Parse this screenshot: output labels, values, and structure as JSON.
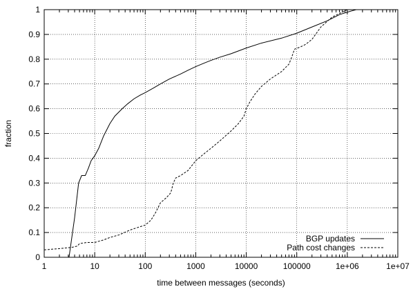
{
  "chart_data": {
    "type": "line",
    "title": "",
    "xlabel": "time between messages (seconds)",
    "ylabel": "fraction",
    "x_scale": "log",
    "xlim": [
      1,
      10000000
    ],
    "ylim": [
      0,
      1
    ],
    "grid": true,
    "legend_position": "bottom-right",
    "x_ticks": [
      1,
      10,
      100,
      1000,
      10000,
      100000,
      1000000,
      10000000
    ],
    "x_tick_labels": [
      "1",
      "10",
      "100",
      "1000",
      "10000",
      "100000",
      "1e+06",
      "1e+07"
    ],
    "y_ticks": [
      0,
      0.1,
      0.2,
      0.3,
      0.4,
      0.5,
      0.6,
      0.7,
      0.8,
      0.9,
      1
    ],
    "y_tick_labels": [
      "0",
      "0.1",
      "0.2",
      "0.3",
      "0.4",
      "0.5",
      "0.6",
      "0.7",
      "0.8",
      "0.9",
      "1"
    ],
    "series": [
      {
        "name": "BGP updates",
        "style": "solid",
        "color": "#000000",
        "points": [
          [
            1,
            0
          ],
          [
            3.1,
            0
          ],
          [
            4.0,
            0.16
          ],
          [
            4.8,
            0.3
          ],
          [
            5.5,
            0.33
          ],
          [
            6.5,
            0.33
          ],
          [
            7.5,
            0.36
          ],
          [
            8.5,
            0.39
          ],
          [
            10,
            0.41
          ],
          [
            12,
            0.44
          ],
          [
            15,
            0.49
          ],
          [
            20,
            0.54
          ],
          [
            25,
            0.57
          ],
          [
            35,
            0.6
          ],
          [
            45,
            0.62
          ],
          [
            60,
            0.64
          ],
          [
            80,
            0.655
          ],
          [
            100,
            0.665
          ],
          [
            150,
            0.685
          ],
          [
            200,
            0.7
          ],
          [
            300,
            0.72
          ],
          [
            500,
            0.74
          ],
          [
            700,
            0.755
          ],
          [
            1000,
            0.77
          ],
          [
            1500,
            0.785
          ],
          [
            2000,
            0.795
          ],
          [
            3000,
            0.808
          ],
          [
            5000,
            0.822
          ],
          [
            10000,
            0.845
          ],
          [
            20000,
            0.865
          ],
          [
            50000,
            0.885
          ],
          [
            100000,
            0.905
          ],
          [
            200000,
            0.93
          ],
          [
            400000,
            0.955
          ],
          [
            700000,
            0.98
          ],
          [
            1000000,
            0.99
          ],
          [
            1500000,
            1.0
          ],
          [
            10000000,
            1.0
          ]
        ]
      },
      {
        "name": "Path cost changes",
        "style": "dashed",
        "color": "#000000",
        "points": [
          [
            1,
            0.03
          ],
          [
            2,
            0.035
          ],
          [
            3.5,
            0.04
          ],
          [
            4.5,
            0.045
          ],
          [
            5,
            0.055
          ],
          [
            7,
            0.06
          ],
          [
            10,
            0.06
          ],
          [
            15,
            0.07
          ],
          [
            20,
            0.08
          ],
          [
            30,
            0.09
          ],
          [
            50,
            0.11
          ],
          [
            70,
            0.12
          ],
          [
            100,
            0.13
          ],
          [
            130,
            0.15
          ],
          [
            160,
            0.18
          ],
          [
            200,
            0.22
          ],
          [
            260,
            0.24
          ],
          [
            320,
            0.26
          ],
          [
            360,
            0.3
          ],
          [
            400,
            0.32
          ],
          [
            500,
            0.33
          ],
          [
            700,
            0.35
          ],
          [
            1000,
            0.39
          ],
          [
            1500,
            0.42
          ],
          [
            2000,
            0.44
          ],
          [
            3000,
            0.47
          ],
          [
            5000,
            0.51
          ],
          [
            7000,
            0.54
          ],
          [
            9000,
            0.57
          ],
          [
            10000,
            0.6
          ],
          [
            12000,
            0.63
          ],
          [
            15000,
            0.66
          ],
          [
            20000,
            0.69
          ],
          [
            30000,
            0.72
          ],
          [
            50000,
            0.75
          ],
          [
            70000,
            0.78
          ],
          [
            80000,
            0.81
          ],
          [
            90000,
            0.84
          ],
          [
            120000,
            0.85
          ],
          [
            150000,
            0.86
          ],
          [
            200000,
            0.88
          ],
          [
            300000,
            0.93
          ],
          [
            500000,
            0.97
          ],
          [
            800000,
            0.99
          ],
          [
            1000000,
            1.0
          ],
          [
            10000000,
            1.0
          ]
        ]
      }
    ]
  }
}
